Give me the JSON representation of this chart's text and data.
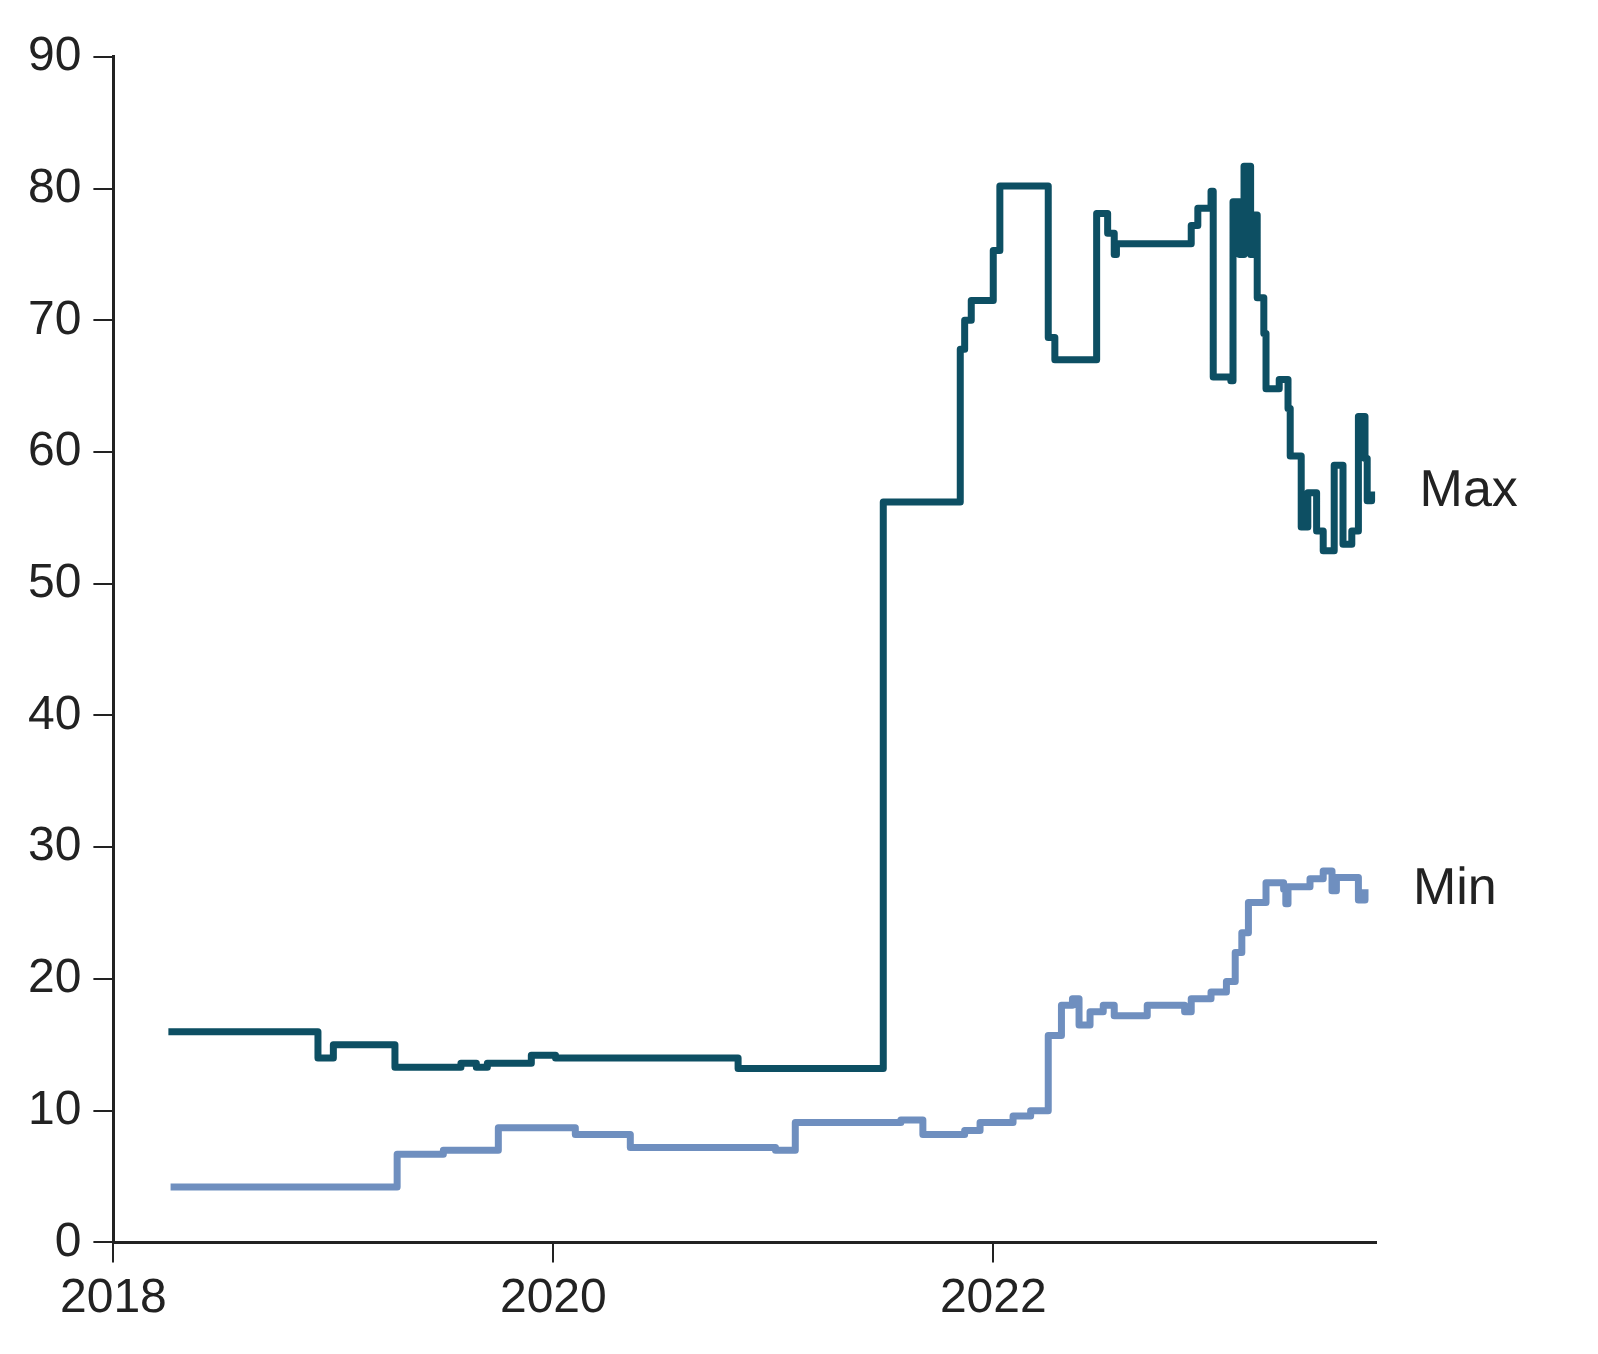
{
  "chart_data": {
    "type": "step",
    "series": [
      {
        "name": "Max",
        "color": "#0d4f63",
        "x": [
          2018.25,
          2018.93,
          2019.0,
          2019.28,
          2019.58,
          2019.65,
          2019.7,
          2019.9,
          2020.01,
          2020.84,
          2021.5,
          2021.85,
          2021.87,
          2021.9,
          2022.0,
          2022.03,
          2022.25,
          2022.28,
          2022.47,
          2022.52,
          2022.55,
          2022.56,
          2022.9,
          2022.93,
          2022.99,
          2023.0,
          2023.08,
          2023.09,
          2023.12,
          2023.14,
          2023.17,
          2023.18,
          2023.2,
          2023.23,
          2023.24,
          2023.3,
          2023.34,
          2023.35,
          2023.4,
          2023.43,
          2023.47,
          2023.5,
          2023.55,
          2023.59,
          2023.63,
          2023.66,
          2023.69,
          2023.7,
          2023.72
        ],
        "values": [
          16,
          14,
          15,
          13.3,
          13.6,
          13.3,
          13.6,
          14.2,
          14,
          13.2,
          56.2,
          67.8,
          70,
          71.5,
          75.3,
          80.2,
          68.7,
          67,
          78.1,
          76.6,
          75,
          75.8,
          77.2,
          78.5,
          79.8,
          65.7,
          65.4,
          79,
          75,
          81.7,
          75,
          78,
          71.7,
          69,
          64.8,
          65.5,
          63.3,
          59.7,
          54.3,
          56.9,
          54,
          52.5,
          59,
          53,
          54,
          62.7,
          59.5,
          56.3,
          57
        ]
      },
      {
        "name": "Min",
        "color": "#6f8fbf",
        "x": [
          2018.26,
          2019.29,
          2019.5,
          2019.75,
          2020.1,
          2020.35,
          2021.01,
          2021.1,
          2021.58,
          2021.68,
          2021.87,
          2021.94,
          2022.09,
          2022.17,
          2022.25,
          2022.31,
          2022.36,
          2022.39,
          2022.44,
          2022.5,
          2022.55,
          2022.7,
          2022.87,
          2022.9,
          2022.99,
          2023.06,
          2023.1,
          2023.13,
          2023.16,
          2023.24,
          2023.32,
          2023.33,
          2023.34,
          2023.44,
          2023.5,
          2023.54,
          2023.56,
          2023.66,
          2023.69
        ],
        "values": [
          4.2,
          6.7,
          7,
          8.7,
          8.2,
          7.2,
          7,
          9.1,
          9.3,
          8.2,
          8.5,
          9.1,
          9.6,
          10,
          15.7,
          18,
          18.5,
          16.5,
          17.5,
          18,
          17.2,
          18,
          17.5,
          18.5,
          19,
          19.8,
          22,
          23.5,
          25.8,
          27.3,
          26.8,
          25.7,
          27,
          27.6,
          28.2,
          26.7,
          27.7,
          26,
          26.8
        ]
      }
    ],
    "xlim": [
      2018,
      2023.74
    ],
    "xticks": [
      2018,
      2020,
      2022
    ],
    "ylim": [
      0,
      90
    ],
    "yticks": [
      0,
      10,
      20,
      30,
      40,
      50,
      60,
      70,
      80,
      90
    ],
    "grid": false,
    "legend": false
  }
}
